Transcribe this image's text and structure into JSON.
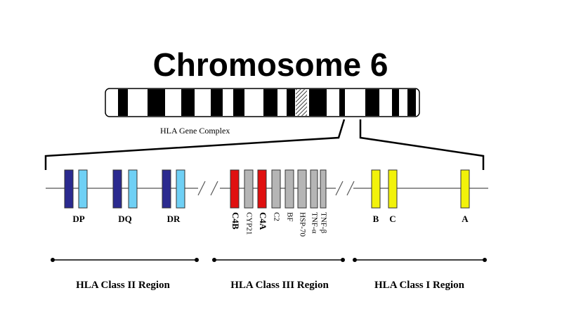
{
  "title": "Chromosome 6",
  "complex_label": "HLA Gene Complex",
  "class_ii": {
    "genes": [
      "DP",
      "DQ",
      "DR"
    ],
    "region": "HLA Class II Region"
  },
  "class_iii": {
    "genes": [
      "C4B",
      "CYP21",
      "C4A",
      "C2",
      "BF",
      "HSP-70",
      "TNF-α",
      "TNF-β"
    ],
    "region": "HLA Class III Region"
  },
  "class_i": {
    "genes": [
      "B",
      "C",
      "A"
    ],
    "region": "HLA Class I Region"
  }
}
